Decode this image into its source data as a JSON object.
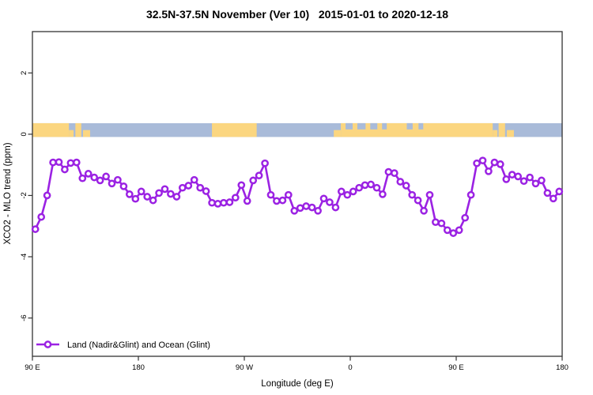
{
  "header": {
    "title": "32.5N-37.5N November (Ver 10)   2015-01-01 to 2020-12-18"
  },
  "chart_data": {
    "type": "line",
    "title": "32.5N-37.5N November (Ver 10)   2015-01-01 to 2020-12-18",
    "xlabel": "Longitude (deg E)",
    "ylabel": "XCO2 - MLO trend (ppm)",
    "legend_label": "Land (Nadir&Glint) and Ocean (Glint)",
    "legend_position": "bottom-left",
    "grid": false,
    "series_color": "#9B22E3",
    "marker": "open-circle",
    "axis": {
      "x_range_deg": [
        0,
        450
      ],
      "x_ticks": [
        {
          "deg": 0,
          "label": "90 E"
        },
        {
          "deg": 90,
          "label": "180"
        },
        {
          "deg": 180,
          "label": "90 W"
        },
        {
          "deg": 270,
          "label": "0"
        },
        {
          "deg": 360,
          "label": "90 E"
        },
        {
          "deg": 450,
          "label": "180"
        }
      ],
      "y_range": [
        -7.25,
        3.35
      ],
      "y_ticks": [
        {
          "value": 2,
          "label": "2"
        },
        {
          "value": 0,
          "label": "0"
        },
        {
          "value": -2,
          "label": "-2"
        },
        {
          "value": -4,
          "label": "-4"
        },
        {
          "value": -6,
          "label": "-6"
        }
      ]
    },
    "series": {
      "name": "Land (Nadir&Glint) and Ocean (Glint)",
      "lon_axis_start_deg": 2.5,
      "lon_step_deg": 5,
      "values": [
        -3.1,
        -2.7,
        -2.0,
        -0.92,
        -0.91,
        -1.15,
        -0.94,
        -0.92,
        -1.44,
        -1.29,
        -1.41,
        -1.51,
        -1.38,
        -1.61,
        -1.49,
        -1.7,
        -1.96,
        -2.11,
        -1.87,
        -2.04,
        -2.16,
        -1.92,
        -1.79,
        -1.95,
        -2.04,
        -1.75,
        -1.68,
        -1.49,
        -1.75,
        -1.86,
        -2.24,
        -2.27,
        -2.24,
        -2.22,
        -2.07,
        -1.66,
        -2.18,
        -1.51,
        -1.35,
        -0.95,
        -1.98,
        -2.18,
        -2.16,
        -1.98,
        -2.5,
        -2.41,
        -2.35,
        -2.39,
        -2.5,
        -2.1,
        -2.22,
        -2.39,
        -1.87,
        -1.98,
        -1.87,
        -1.75,
        -1.66,
        -1.64,
        -1.75,
        -1.96,
        -1.23,
        -1.27,
        -1.55,
        -1.68,
        -1.98,
        -2.16,
        -2.5,
        -1.98,
        -2.87,
        -2.91,
        -3.13,
        -3.23,
        -3.13,
        -2.73,
        -1.98,
        -0.95,
        -0.86,
        -1.21,
        -0.92,
        -0.98,
        -1.47,
        -1.32,
        -1.38,
        -1.53,
        -1.41,
        -1.61,
        -1.51,
        -1.92,
        -2.1,
        -1.87
      ]
    },
    "map_band": {
      "description": "land-ocean strip along 32.5N-37.5N",
      "ocean_color": "#A9BBD9",
      "land_color": "#FBD680",
      "top_value": 0.36,
      "bottom_value": -0.09,
      "land_full_deg": [
        [
          0,
          31
        ],
        [
          36.5,
          41.5
        ],
        [
          152.5,
          190.5
        ],
        [
          262,
          391
        ],
        [
          396,
          401.5
        ]
      ],
      "land_bottom_deg": [
        [
          31,
          35
        ],
        [
          43,
          49
        ],
        [
          256,
          262
        ],
        [
          391,
          395
        ],
        [
          403,
          409
        ]
      ],
      "ocean_top_deg": [
        [
          266,
          272
        ],
        [
          276,
          283
        ],
        [
          287,
          293
        ],
        [
          297,
          301
        ],
        [
          318,
          323
        ],
        [
          328,
          332
        ]
      ]
    }
  }
}
